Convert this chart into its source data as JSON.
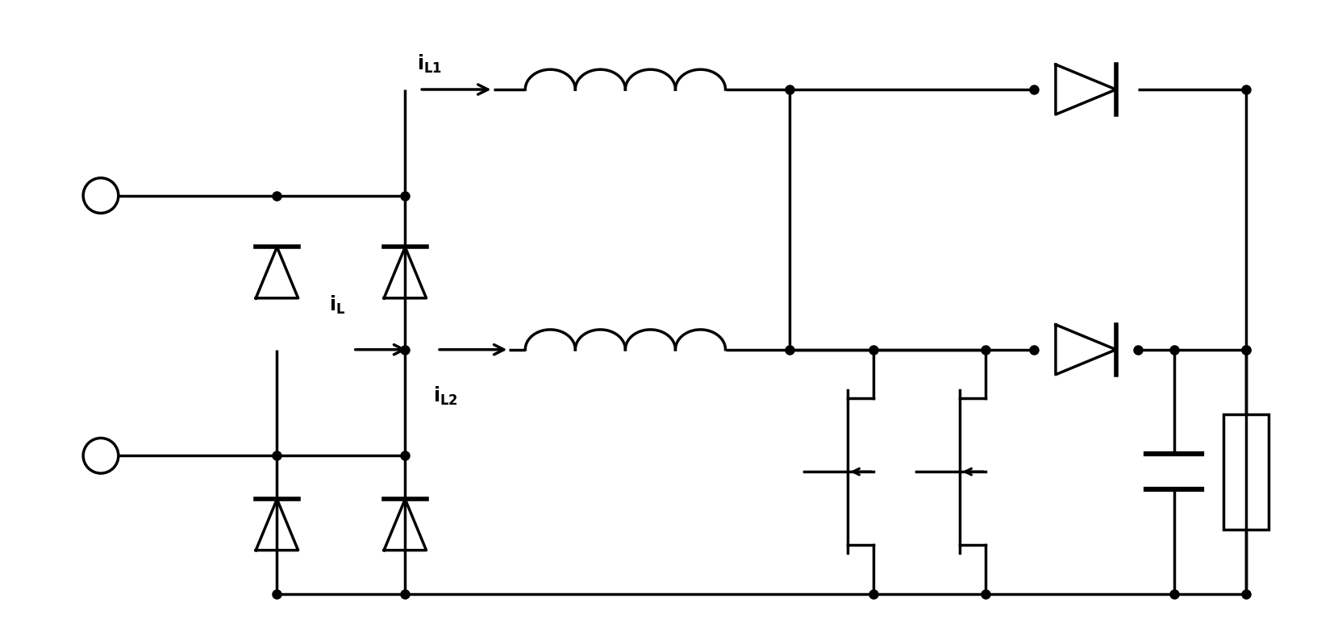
{
  "bg_color": "#ffffff",
  "line_color": "#000000",
  "lw": 2.5,
  "fig_width": 16.65,
  "fig_height": 7.94,
  "yB": 0.55,
  "yM": 3.6,
  "yT": 6.85,
  "xIN": 1.2,
  "xBL": 3.4,
  "xBR": 5.0,
  "xL1s": 6.5,
  "xL1e": 9.0,
  "xL2s": 6.5,
  "xL2e": 9.0,
  "xVC": 9.8,
  "xQ1": 10.7,
  "xQ2": 12.1,
  "xDout": 13.5,
  "xCAP": 14.6,
  "xRES": 15.5,
  "xOUT": 15.5
}
